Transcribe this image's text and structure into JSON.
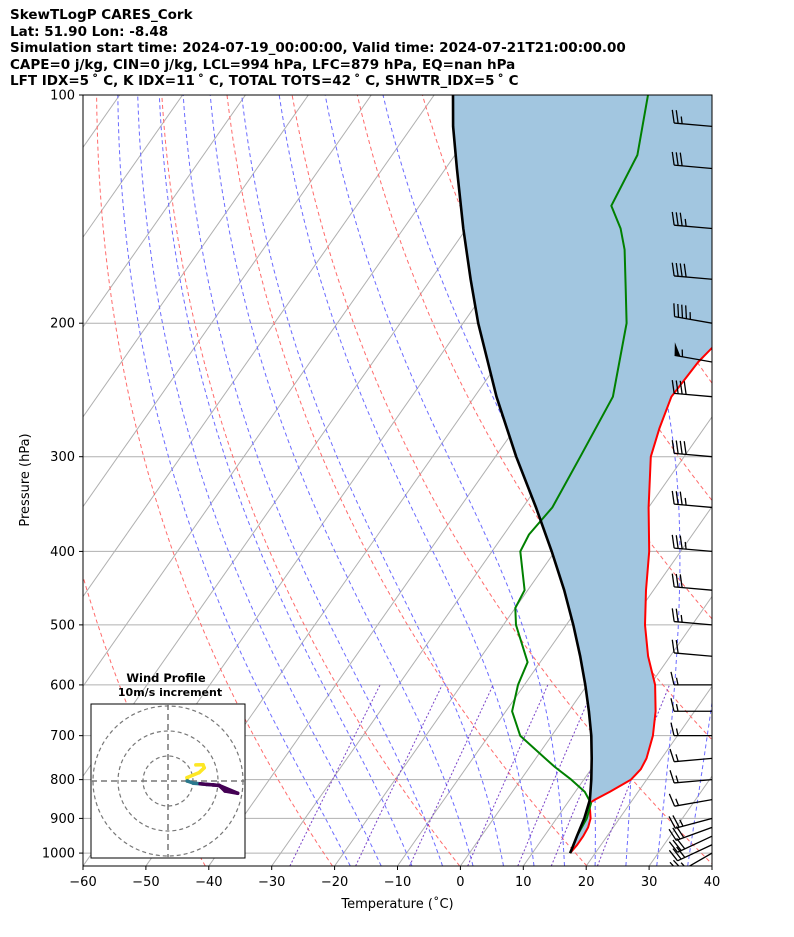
{
  "header": {
    "line1": "SkewTLogP CARES_Cork",
    "line2": "Lat: 51.90   Lon: -8.48",
    "line3": "Simulation start time: 2024-07-19_00:00:00, Valid time: 2024-07-21T21:00:00.00",
    "line4": "CAPE=0 j/kg, CIN=0 j/kg, LCL=994 hPa, LFC=879 hPa, EQ=nan hPa",
    "line5": "LFT IDX=5 ˚ C, K IDX=11 ˚ C, TOTAL TOTS=42 ˚ C, SHWTR_IDX=5 ˚ C"
  },
  "chart_data": {
    "type": "skew-t",
    "xlabel": "Temperature (˚C)",
    "ylabel": "Pressure (hPa)",
    "xlim": [
      -60,
      40
    ],
    "ylim": [
      1040,
      100
    ],
    "y_log": true,
    "grid": true,
    "xticks": [
      -60,
      -50,
      -40,
      -30,
      -20,
      -10,
      0,
      10,
      20,
      30,
      40
    ],
    "yticks": [
      100,
      200,
      300,
      400,
      500,
      600,
      700,
      800,
      900,
      1000
    ],
    "series": [
      {
        "role": "temperature",
        "color": "#ff0000",
        "pressure": [
          1000,
          975,
          950,
          925,
          900,
          880,
          860,
          850,
          830,
          800,
          775,
          750,
          700,
          650,
          600,
          550,
          500,
          450,
          400,
          350,
          300,
          275,
          250,
          225,
          200,
          175,
          150,
          125,
          110,
          100
        ],
        "values": [
          16.0,
          16.2,
          16.2,
          16.0,
          15.4,
          14.5,
          13.5,
          14.0,
          15.5,
          17.5,
          17.9,
          17.6,
          16.1,
          13.8,
          10.8,
          6.5,
          2.5,
          -1.2,
          -5.0,
          -10.0,
          -15.3,
          -17.1,
          -18.7,
          -18.3,
          -16.6,
          -14.0,
          -12.5,
          -11.2,
          -9.4,
          -8.5
        ]
      },
      {
        "role": "dewpoint",
        "color": "#008000",
        "pressure": [
          1000,
          950,
          900,
          860,
          830,
          800,
          770,
          750,
          700,
          650,
          600,
          560,
          500,
          475,
          450,
          400,
          380,
          350,
          300,
          250,
          200,
          180,
          160,
          150,
          140,
          120,
          100
        ],
        "values": [
          16.0,
          15.2,
          14.8,
          13.8,
          11.5,
          8.0,
          4.0,
          1.5,
          -5.0,
          -9.0,
          -11.0,
          -12.0,
          -18.0,
          -20.0,
          -20.5,
          -25.5,
          -26.0,
          -25.3,
          -26.5,
          -28.0,
          -34.0,
          -38.0,
          -42.5,
          -45.5,
          -49.5,
          -51.0,
          -56.0
        ]
      },
      {
        "role": "parcel",
        "color": "#000000",
        "pressure": [
          1000,
          980,
          950,
          900,
          850,
          800,
          750,
          700,
          650,
          600,
          550,
          500,
          450,
          400,
          350,
          300,
          250,
          200,
          175,
          150,
          125,
          110,
          100
        ],
        "values": [
          16.0,
          15.7,
          15.2,
          14.4,
          13.2,
          11.2,
          8.9,
          6.3,
          3.2,
          -0.3,
          -4.3,
          -8.9,
          -14.2,
          -20.5,
          -27.9,
          -36.7,
          -46.5,
          -57.6,
          -63.7,
          -70.5,
          -78.2,
          -83.5,
          -87.0
        ]
      }
    ],
    "cape_shading": {
      "between": [
        "parcel",
        "temperature"
      ],
      "color": "#a2c6e0"
    },
    "dry_adiabats": {
      "theta_K": [
        210,
        230,
        250,
        270,
        290,
        310,
        330,
        350,
        370,
        390,
        410,
        430,
        450,
        470,
        490
      ],
      "color": "#ff6b6b"
    },
    "moist_adiabats": {
      "theta_w_C": [
        -20,
        -15,
        -10,
        -5,
        0,
        5,
        10,
        15,
        20,
        25,
        30,
        35,
        40,
        45
      ],
      "color": "#6b6bff"
    },
    "mixing_lines": {
      "color": "#7a42c8",
      "dashed": true
    },
    "wind_barbs": {
      "pressure": [
        1000,
        975,
        950,
        925,
        900,
        850,
        800,
        750,
        700,
        650,
        600,
        550,
        500,
        450,
        400,
        350,
        300,
        250,
        225,
        200,
        175,
        150,
        125,
        110
      ],
      "speed_kt": [
        25,
        30,
        30,
        30,
        25,
        15,
        15,
        15,
        15,
        15,
        15,
        20,
        25,
        30,
        35,
        35,
        40,
        40,
        55,
        45,
        40,
        35,
        30,
        25
      ],
      "direction_deg": [
        240,
        245,
        245,
        250,
        255,
        260,
        265,
        265,
        270,
        270,
        270,
        275,
        275,
        275,
        275,
        275,
        275,
        275,
        280,
        280,
        275,
        275,
        275,
        275
      ]
    },
    "inset": {
      "title": "Wind Profile",
      "subtitle": "10m/s increment",
      "color_low": "#440154",
      "color_mid": "#2a788e",
      "color_high": "#fde725"
    }
  }
}
